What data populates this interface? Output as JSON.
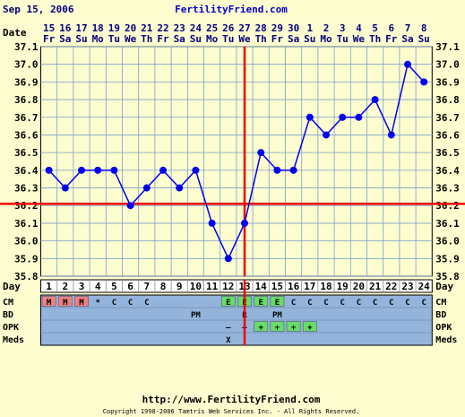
{
  "header": {
    "date": "Sep 15, 2006",
    "site": "FertilityFriend.com"
  },
  "footer": {
    "url": "http://www.FertilityFriend.com",
    "copyright": "Copyright 1998-2006 Tamtris Web Services Inc. - All Rights Reserved."
  },
  "chart_data": {
    "type": "line",
    "title": "",
    "xlabel": "",
    "ylabel": "",
    "row_labels": {
      "date": "Date",
      "day": "Day"
    },
    "dates": [
      "15",
      "16",
      "17",
      "18",
      "19",
      "20",
      "21",
      "22",
      "23",
      "24",
      "25",
      "26",
      "27",
      "28",
      "29",
      "30",
      "1",
      "2",
      "3",
      "4",
      "5",
      "6",
      "7",
      "8"
    ],
    "weekdays": [
      "Fr",
      "Sa",
      "Su",
      "Mo",
      "Tu",
      "We",
      "Th",
      "Fr",
      "Sa",
      "Su",
      "Mo",
      "Tu",
      "We",
      "Th",
      "Fr",
      "Sa",
      "Su",
      "Mo",
      "Tu",
      "We",
      "Th",
      "Fr",
      "Sa",
      "Su"
    ],
    "cycle_days": [
      "1",
      "2",
      "3",
      "4",
      "5",
      "6",
      "7",
      "8",
      "9",
      "10",
      "11",
      "12",
      "13",
      "14",
      "15",
      "16",
      "17",
      "18",
      "19",
      "20",
      "21",
      "22",
      "23",
      "24"
    ],
    "ylim": [
      35.8,
      37.1
    ],
    "yticks": [
      "37.1",
      "37.0",
      "36.9",
      "36.8",
      "36.7",
      "36.6",
      "36.5",
      "36.4",
      "36.3",
      "36.2",
      "36.1",
      "36.0",
      "35.9",
      "35.8"
    ],
    "grid": true,
    "series": [
      {
        "values": [
          36.4,
          36.3,
          36.4,
          36.4,
          36.4,
          36.2,
          36.3,
          36.4,
          36.3,
          36.4,
          36.1,
          35.9,
          36.1,
          36.5,
          36.4,
          36.4,
          36.7,
          36.6,
          36.7,
          36.7,
          36.8,
          36.6,
          37.0,
          36.9
        ]
      }
    ],
    "coverline": 36.21,
    "ovulation_day": 13,
    "colors": {
      "temperature": "#0000ee",
      "coverline": "#ee0000",
      "ovulation": "#ee0000",
      "grid": "#7aa0c8",
      "panel_bg": "#94b4dc",
      "menses": "#f08080",
      "egg_white": "#66dd66",
      "positive_opk": "#66dd66"
    },
    "observations": [
      {
        "label": "CM",
        "values": [
          "M",
          "M",
          "M",
          "*",
          "C",
          "C",
          "C",
          "",
          "",
          "",
          "",
          "E",
          "E",
          "E",
          "E",
          "C",
          "C",
          "C",
          "C",
          "C",
          "C",
          "C",
          "C",
          "C"
        ]
      },
      {
        "label": "BD",
        "values": [
          "",
          "",
          "",
          "",
          "",
          "",
          "",
          "",
          "",
          "PM",
          "",
          "",
          "R",
          "",
          "PM",
          "",
          "",
          "",
          "",
          "",
          "",
          "",
          "",
          ""
        ]
      },
      {
        "label": "OPK",
        "values": [
          "",
          "",
          "",
          "",
          "",
          "",
          "",
          "",
          "",
          "",
          "",
          "–",
          "–",
          "+",
          "+",
          "+",
          "+",
          "",
          "",
          "",
          "",
          "",
          "",
          ""
        ]
      },
      {
        "label": "Meds",
        "values": [
          "",
          "",
          "",
          "",
          "",
          "",
          "",
          "",
          "",
          "",
          "",
          "X",
          "",
          "",
          "",
          "",
          "",
          "",
          "",
          "",
          "",
          "",
          "",
          ""
        ]
      }
    ]
  }
}
